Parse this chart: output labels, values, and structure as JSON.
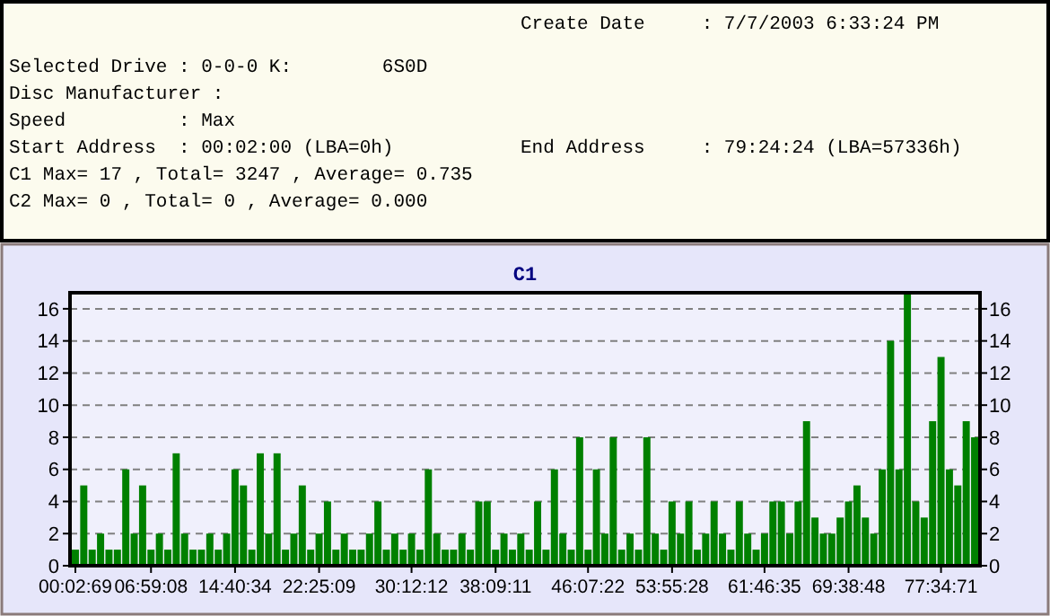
{
  "chart_data": {
    "type": "bar",
    "title": "C1",
    "annotations": [
      "Create Date     : 7/7/2003 6:33:24 PM",
      "Selected Drive : 0-0-0 K:        6S0D",
      "Disc Manufacturer :",
      "Speed          : Max",
      "Start Address  : 00:02:00 (LBA=0h)",
      "End Address     : 79:24:24 (LBA=57336h)",
      "C1 Max= 17 , Total= 3247 , Average= 0.735",
      "C2 Max= 0 , Total= 0 , Average= 0.000"
    ],
    "categories": [
      "00:02:69",
      null,
      null,
      null,
      null,
      null,
      null,
      null,
      null,
      "06:59:08",
      null,
      null,
      null,
      null,
      null,
      null,
      null,
      null,
      null,
      "14:40:34",
      null,
      null,
      null,
      null,
      null,
      null,
      null,
      null,
      null,
      "22:25:09",
      null,
      null,
      null,
      null,
      null,
      null,
      null,
      null,
      null,
      null,
      "30:12:12",
      null,
      null,
      null,
      null,
      null,
      null,
      null,
      null,
      null,
      "38:09:11",
      null,
      null,
      null,
      null,
      null,
      null,
      null,
      null,
      null,
      null,
      "46:07:22",
      null,
      null,
      null,
      null,
      null,
      null,
      null,
      null,
      null,
      "53:55:28",
      null,
      null,
      null,
      null,
      null,
      null,
      null,
      null,
      null,
      null,
      "61:46:35",
      null,
      null,
      null,
      null,
      null,
      null,
      null,
      null,
      null,
      "69:38:48",
      null,
      null,
      null,
      null,
      null,
      null,
      null,
      null,
      null,
      null,
      "77:34:71",
      null,
      null,
      null,
      null
    ],
    "series": [
      {
        "color": "#008000",
        "values": [
          1,
          5,
          1,
          2,
          1,
          1,
          6,
          2,
          5,
          1,
          2,
          1,
          7,
          2,
          1,
          1,
          2,
          1,
          2,
          6,
          5,
          1,
          7,
          2,
          7,
          1,
          2,
          5,
          1,
          2,
          4,
          1,
          2,
          1,
          1,
          2,
          4,
          1,
          2,
          1,
          2,
          1,
          6,
          2,
          1,
          1,
          2,
          1,
          4,
          4,
          1,
          2,
          1,
          2,
          1,
          4,
          1,
          6,
          2,
          1,
          8,
          1,
          6,
          2,
          8,
          1,
          2,
          1,
          8,
          2,
          1,
          4,
          2,
          4,
          1,
          2,
          4,
          2,
          1,
          4,
          2,
          1,
          2,
          4,
          4,
          2,
          4,
          9,
          3,
          2,
          2,
          3,
          4,
          5,
          3,
          2,
          6,
          14,
          6,
          17,
          4,
          3,
          9,
          13,
          6,
          5,
          9,
          8
        ]
      }
    ],
    "ylim": [
      0,
      17
    ],
    "yticks": [
      0,
      2,
      4,
      6,
      8,
      10,
      12,
      14,
      16
    ],
    "y2lim": [
      0,
      17
    ],
    "y2ticks": [
      0,
      2,
      4,
      6,
      8,
      10,
      12,
      14,
      16
    ],
    "grid": "y"
  }
}
